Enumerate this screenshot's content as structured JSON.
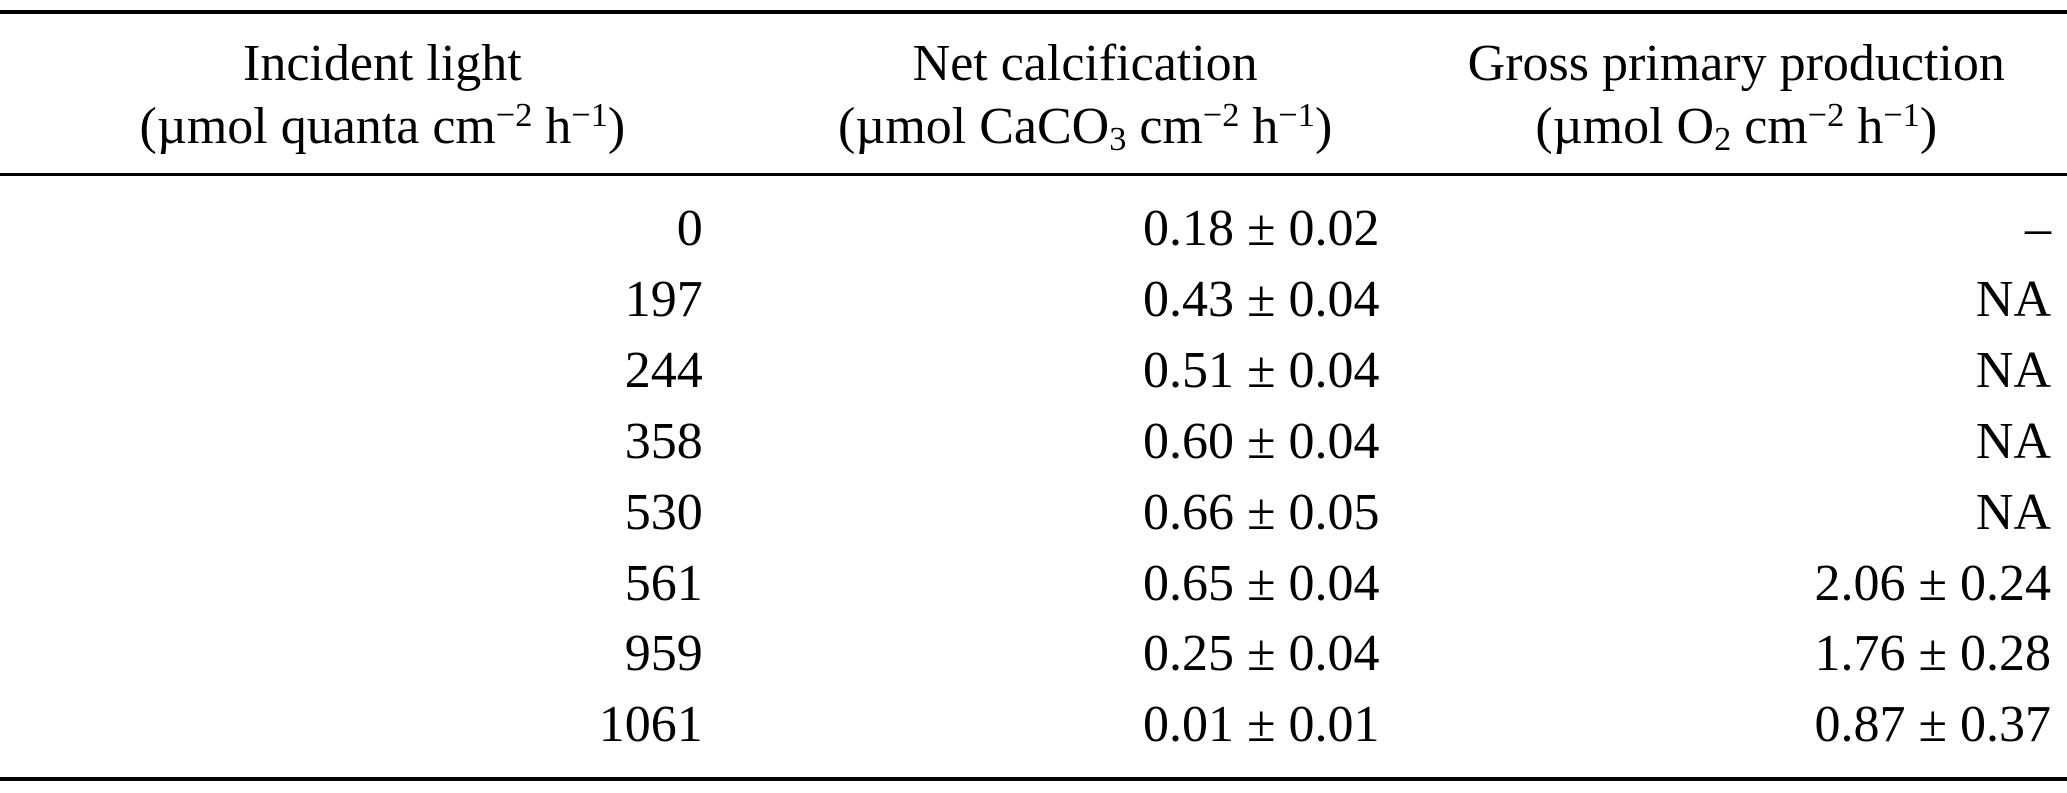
{
  "table": {
    "columns": [
      {
        "title": "Incident light",
        "p1": "(µmol quanta cm",
        "s1": "−2",
        "p2": " h",
        "s2": "−1",
        "p3": ")"
      },
      {
        "title": "Net calcification",
        "p1": "(µmol CaCO",
        "sb": "3",
        "p2": " cm",
        "s1": "−2",
        "p3": " h",
        "s2": "−1",
        "p4": ")"
      },
      {
        "title": "Gross primary production",
        "p1": "(µmol O",
        "sb": "2",
        "p2": " cm",
        "s1": "−2",
        "p3": " h",
        "s2": "−1",
        "p4": ")"
      }
    ],
    "rows": [
      {
        "light": "0",
        "calcification": "0.18 ± 0.02",
        "gpp": "–"
      },
      {
        "light": "197",
        "calcification": "0.43 ± 0.04",
        "gpp": "NA"
      },
      {
        "light": "244",
        "calcification": "0.51 ± 0.04",
        "gpp": "NA"
      },
      {
        "light": "358",
        "calcification": "0.60 ± 0.04",
        "gpp": "NA"
      },
      {
        "light": "530",
        "calcification": "0.66 ± 0.05",
        "gpp": "NA"
      },
      {
        "light": "561",
        "calcification": "0.65 ± 0.04",
        "gpp": "2.06 ± 0.24"
      },
      {
        "light": "959",
        "calcification": "0.25 ± 0.04",
        "gpp": "1.76 ± 0.28"
      },
      {
        "light": "1061",
        "calcification": "0.01 ± 0.01",
        "gpp": "0.87 ± 0.37"
      }
    ]
  }
}
